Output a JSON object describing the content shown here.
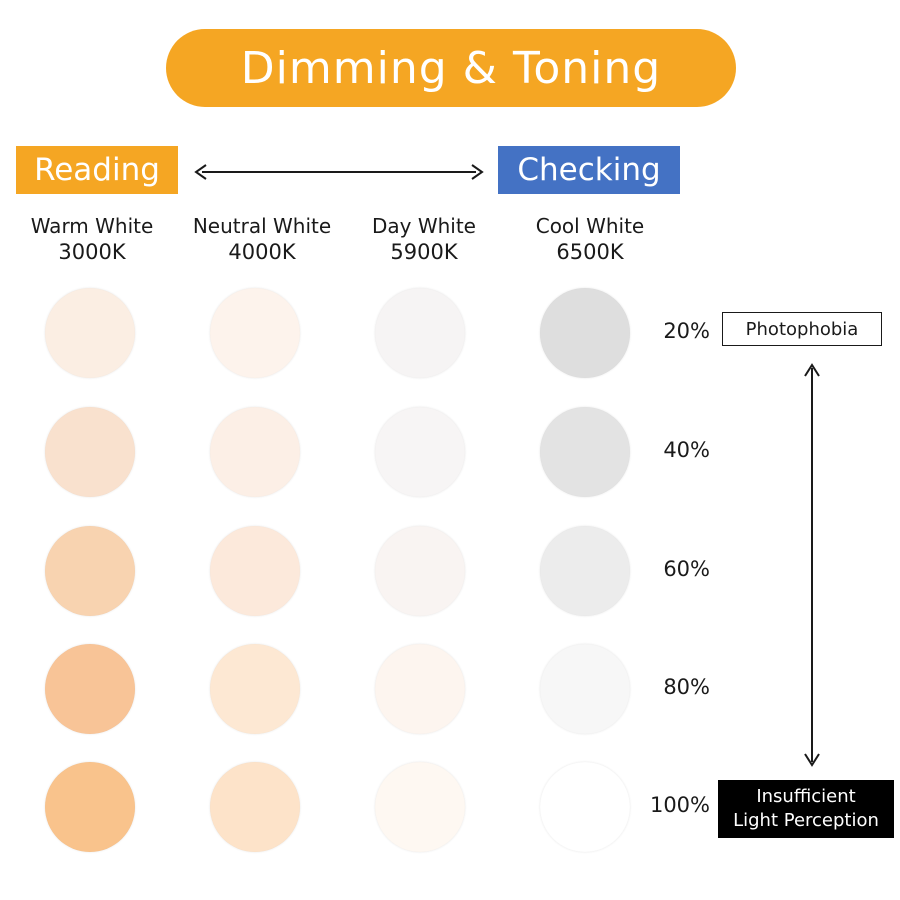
{
  "title": "Dimming & Toning",
  "modes": {
    "left": {
      "label": "Reading",
      "color": "#f5a623"
    },
    "right": {
      "label": "Checking",
      "color": "#4472c4"
    }
  },
  "columns": [
    {
      "name": "Warm White",
      "kelvin": "3000K"
    },
    {
      "name": "Neutral White",
      "kelvin": "4000K"
    },
    {
      "name": "Day White",
      "kelvin": "5900K"
    },
    {
      "name": "Cool White",
      "kelvin": "6500K"
    }
  ],
  "rows": [
    {
      "level": "20%",
      "colors": [
        "#fbeee3",
        "#fdf3ec",
        "#f6f4f4",
        "#dedede"
      ]
    },
    {
      "level": "40%",
      "colors": [
        "#f9e1ce",
        "#fcefe6",
        "#f7f5f5",
        "#e3e3e3"
      ]
    },
    {
      "level": "60%",
      "colors": [
        "#f8d3b0",
        "#fce9db",
        "#f9f4f2",
        "#ececec"
      ]
    },
    {
      "level": "80%",
      "colors": [
        "#f8c497",
        "#fde8d3",
        "#fdf5ef",
        "#f7f7f7"
      ]
    },
    {
      "level": "100%",
      "colors": [
        "#f9c38c",
        "#fde3c9",
        "#fef8f2",
        "#ffffff"
      ]
    }
  ],
  "notes": {
    "top": "Photophobia",
    "bottom": [
      "Insufficient",
      "Light Perception"
    ]
  }
}
